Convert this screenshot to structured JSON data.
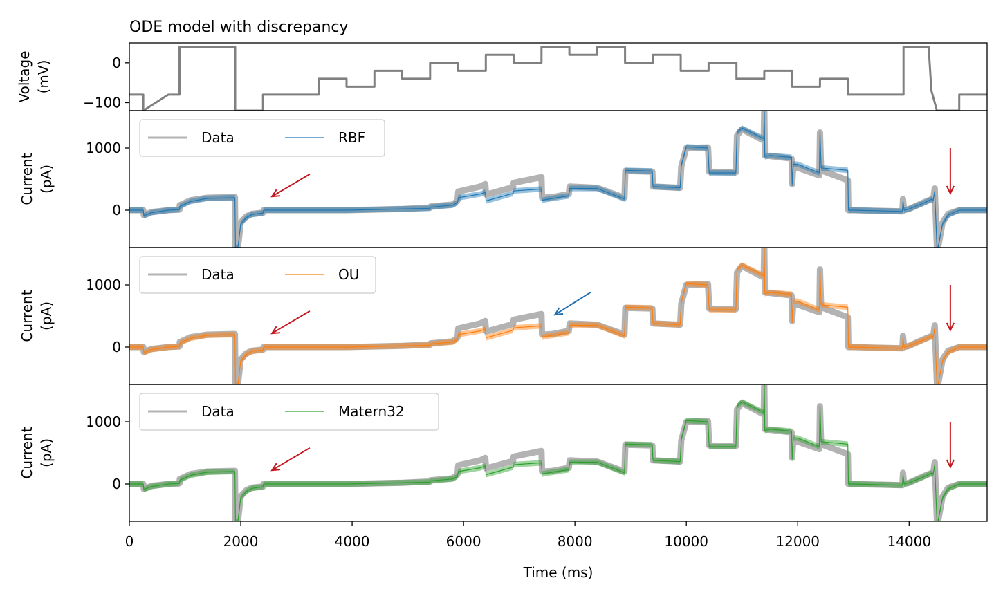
{
  "chart_data": {
    "type": "line",
    "title": "ODE model with discrepancy",
    "xlabel": "Time (ms)",
    "xlim": [
      0,
      15400
    ],
    "x_ticks": [
      0,
      2000,
      4000,
      6000,
      8000,
      10000,
      12000,
      14000
    ],
    "x_tick_labels": [
      "0",
      "2000",
      "4000",
      "6000",
      "8000",
      "10000",
      "12000",
      "14000"
    ],
    "panels": [
      {
        "id": "voltage",
        "ylabel": [
          "Voltage",
          "(mV)"
        ],
        "ylim": [
          -120,
          50
        ],
        "y_ticks": [
          0,
          -100
        ],
        "y_tick_labels": [
          "0",
          "−100"
        ],
        "series": [
          {
            "color": "#808080",
            "x": [
              0,
              250,
              250,
              700,
              900,
              900,
              1900,
              1900,
              2400,
              2400,
              3400,
              3400,
              3900,
              3900,
              4400,
              4400,
              4900,
              4900,
              5400,
              5400,
              5900,
              5900,
              6400,
              6400,
              6900,
              6900,
              7400,
              7400,
              7900,
              7900,
              8400,
              8400,
              8900,
              8900,
              9400,
              9400,
              9900,
              9900,
              10400,
              10400,
              10900,
              10900,
              11400,
              11400,
              11900,
              11900,
              12400,
              12400,
              12900,
              12900,
              13900,
              13900,
              14350,
              14400,
              14500,
              14500,
              14900,
              14900,
              15400
            ],
            "y": [
              -80,
              -80,
              -120,
              -80,
              -80,
              40,
              40,
              -120,
              -120,
              -80,
              -80,
              -40,
              -40,
              -60,
              -60,
              -20,
              -20,
              -40,
              -40,
              0,
              0,
              -20,
              -20,
              20,
              20,
              0,
              0,
              40,
              40,
              20,
              20,
              40,
              40,
              0,
              0,
              20,
              20,
              -20,
              -20,
              0,
              0,
              -40,
              -40,
              -20,
              -20,
              -60,
              -60,
              -40,
              -40,
              -80,
              -80,
              40,
              40,
              -70,
              -120,
              -120,
              -120,
              -80,
              -80
            ]
          }
        ]
      },
      {
        "id": "rbf",
        "ylabel": [
          "Current",
          "(pA)"
        ],
        "ylim": [
          -600,
          1600
        ],
        "y_ticks": [
          0,
          1000
        ],
        "y_tick_labels": [
          "0",
          "1000"
        ],
        "legend": {
          "position": "upper left",
          "entries": [
            "Data",
            "RBF"
          ]
        },
        "model": {
          "label": "RBF",
          "color": "#1f77b4"
        },
        "arrows": [
          {
            "color": "#c4161c",
            "from": [
              3240,
              580
            ],
            "to": [
              2560,
              220
            ]
          },
          {
            "color": "#c4161c",
            "from": [
              14740,
              1000
            ],
            "to": [
              14740,
              270
            ]
          }
        ]
      },
      {
        "id": "ou",
        "ylabel": [
          "Current",
          "(pA)"
        ],
        "ylim": [
          -600,
          1600
        ],
        "y_ticks": [
          0,
          1000
        ],
        "y_tick_labels": [
          "0",
          "1000"
        ],
        "legend": {
          "position": "upper left",
          "entries": [
            "Data",
            "OU"
          ]
        },
        "model": {
          "label": "OU",
          "color": "#ff7f0e"
        },
        "arrows": [
          {
            "color": "#c4161c",
            "from": [
              3240,
              580
            ],
            "to": [
              2560,
              220
            ]
          },
          {
            "color": "#1f6fb0",
            "from": [
              8280,
              880
            ],
            "to": [
              7640,
              520
            ]
          },
          {
            "color": "#c4161c",
            "from": [
              14740,
              1000
            ],
            "to": [
              14740,
              270
            ]
          }
        ]
      },
      {
        "id": "matern32",
        "ylabel": [
          "Current",
          "(pA)"
        ],
        "ylim": [
          -600,
          1600
        ],
        "y_ticks": [
          0,
          1000
        ],
        "y_tick_labels": [
          "0",
          "1000"
        ],
        "legend": {
          "position": "upper left",
          "entries": [
            "Data",
            "Matern32"
          ]
        },
        "model": {
          "label": "Matern32",
          "color": "#2ca02c"
        },
        "arrows": [
          {
            "color": "#c4161c",
            "from": [
              3240,
              580
            ],
            "to": [
              2560,
              220
            ]
          },
          {
            "color": "#c4161c",
            "from": [
              14740,
              1000
            ],
            "to": [
              14740,
              270
            ]
          }
        ]
      }
    ],
    "current_trace": {
      "data_color": "#b3b3b3",
      "data_x": [
        0,
        250,
        260,
        400,
        700,
        900,
        905,
        1100,
        1400,
        1850,
        1895,
        1905,
        1950,
        2000,
        2100,
        2200,
        2400,
        2410,
        2600,
        3000,
        3390,
        3400,
        3900,
        4400,
        4900,
        5400,
        5410,
        5800,
        5890,
        5905,
        6300,
        6390,
        6405,
        6890,
        6900,
        7390,
        7400,
        7410,
        7600,
        7890,
        7905,
        8400,
        8890,
        8905,
        9390,
        9400,
        9890,
        9910,
        10000,
        10390,
        10410,
        10890,
        10910,
        11000,
        11390,
        11400,
        11410,
        11500,
        11890,
        11900,
        11920,
        12000,
        12390,
        12400,
        12420,
        12900,
        12910,
        13000,
        13880,
        13890,
        13910,
        14000,
        14300,
        14410,
        14430,
        14460,
        14500,
        14520,
        14600,
        14700,
        14900,
        15400
      ],
      "data_y": [
        0,
        0,
        -80,
        -30,
        0,
        10,
        80,
        160,
        200,
        210,
        210,
        -600,
        -600,
        -200,
        -100,
        -60,
        -40,
        0,
        0,
        0,
        0,
        0,
        0,
        10,
        20,
        40,
        60,
        90,
        150,
        300,
        380,
        420,
        250,
        370,
        440,
        530,
        530,
        200,
        210,
        260,
        380,
        360,
        200,
        630,
        620,
        380,
        360,
        700,
        1000,
        1010,
        620,
        610,
        1200,
        1300,
        1120,
        1650,
        880,
        870,
        830,
        420,
        700,
        680,
        560,
        1250,
        640,
        480,
        0,
        0,
        -20,
        180,
        0,
        20,
        140,
        180,
        160,
        350,
        -600,
        -600,
        -200,
        -60,
        0,
        0
      ],
      "model_x": [
        0,
        250,
        260,
        400,
        700,
        900,
        905,
        1100,
        1400,
        1850,
        1895,
        1905,
        1950,
        2000,
        2100,
        2200,
        2400,
        2410,
        2600,
        3000,
        3390,
        3400,
        3900,
        4400,
        4900,
        5400,
        5410,
        5800,
        5890,
        5905,
        6300,
        6390,
        6405,
        6890,
        6900,
        7390,
        7400,
        7410,
        7600,
        7890,
        7905,
        8400,
        8890,
        8905,
        9390,
        9400,
        9890,
        9910,
        10000,
        10390,
        10410,
        10890,
        10910,
        11000,
        11390,
        11400,
        11410,
        11500,
        11890,
        11900,
        11920,
        12000,
        12390,
        12400,
        12420,
        12900,
        12910,
        13000,
        13880,
        13890,
        13910,
        14000,
        14300,
        14410,
        14430,
        14460,
        14500,
        14520,
        14600,
        14700,
        14900,
        15400
      ],
      "model_y": [
        0,
        0,
        -90,
        -40,
        0,
        10,
        60,
        140,
        190,
        200,
        200,
        -600,
        -600,
        -220,
        -120,
        -70,
        -45,
        0,
        0,
        0,
        0,
        0,
        0,
        10,
        20,
        30,
        50,
        80,
        120,
        200,
        260,
        290,
        150,
        270,
        310,
        340,
        340,
        160,
        190,
        230,
        350,
        350,
        180,
        640,
        630,
        380,
        360,
        720,
        1020,
        1000,
        600,
        600,
        1250,
        1320,
        1150,
        1620,
        860,
        880,
        850,
        400,
        740,
        740,
        600,
        1260,
        680,
        640,
        0,
        0,
        -20,
        150,
        0,
        20,
        130,
        180,
        150,
        300,
        -600,
        -600,
        -220,
        -80,
        0,
        0
      ]
    }
  }
}
